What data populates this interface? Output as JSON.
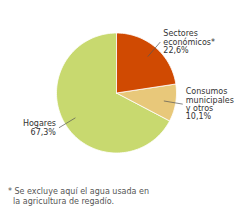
{
  "chart_data": {
    "type": "pie",
    "categories": [
      "Hogares\n67,3%",
      "Consumos\nmunicipales\ny otros\n10,1%",
      "Sectores\neconómicos*\n22,6%"
    ],
    "values": [
      67.3,
      10.1,
      22.6
    ],
    "colors": [
      "#c8d96f",
      "#e8c87a",
      "#d04a02"
    ],
    "footnote": "* Se excluye aquí el agua usada en\n  la agricultura de regadío."
  }
}
